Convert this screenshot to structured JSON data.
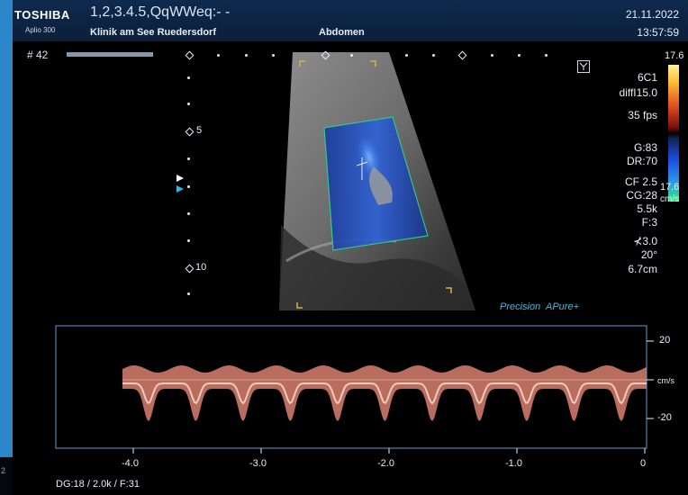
{
  "header": {
    "brand": "TOSHIBA",
    "model": "Aplio 300",
    "patient_id": "1,2,3.4.5,QqWWeq:- -",
    "clinic": "Klinik am See Ruedersdorf",
    "exam": "Abdomen",
    "date": "21.11.2022",
    "time": "13:57:59"
  },
  "image": {
    "frame": "# 42",
    "depth_marks": [
      "5",
      "10"
    ]
  },
  "params": {
    "probe": "6C1",
    "mode": "diffI15.0",
    "fps": "35 fps",
    "gain": "G:83",
    "dynamic_range": "DR:70",
    "color_freq": "CF 2.5",
    "color_gain": "CG:28",
    "prf": "5.5k",
    "filter": "F:3",
    "angle_value": "3.0",
    "angle": "20°",
    "depth": "6.7cm"
  },
  "colorbar": {
    "top": "17.6",
    "bottom": "17.6",
    "unit": "cm/s"
  },
  "badges": {
    "precision": "Precision",
    "apure": "APure+"
  },
  "doppler": {
    "y_ticks": [
      "20",
      "cm/s",
      "-20"
    ],
    "x_ticks": [
      "-4.0",
      "-3.0",
      "-2.0",
      "-1.0",
      "0"
    ]
  },
  "footer": {
    "info": "DG:18   / 2.0k    / F:31",
    "left_num": "2"
  }
}
